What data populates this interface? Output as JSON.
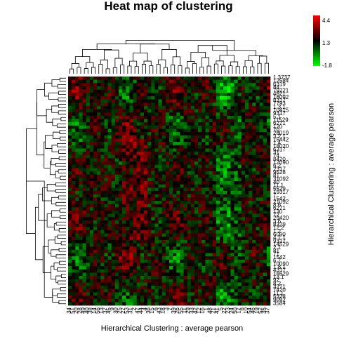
{
  "chart_data": {
    "type": "heatmap",
    "title": "Heat map of clustering",
    "xlabel": "Hierarchical Clustering : average pearson",
    "ylabel": "Hierarchical Clustering : average pearson",
    "color_scale": {
      "low": -1.8,
      "mid": 1.3,
      "high": 4.4,
      "low_color": "#00ff00",
      "mid_color": "#000000",
      "high_color": "#ff0000",
      "tick_labels": [
        "4.4",
        "1.3",
        "-1.8"
      ]
    },
    "n_rows": 70,
    "n_cols": 56,
    "column_labels": [
      "34",
      "51",
      "20",
      "28",
      "49",
      "40",
      "38",
      "14",
      "56",
      "13",
      "37",
      "45",
      "9",
      "30",
      "25",
      "27",
      "53",
      "31",
      "2",
      "47",
      "44",
      "4",
      "36",
      "15",
      "6",
      "43",
      "18",
      "3",
      "7",
      "39",
      "26",
      "55",
      "11",
      "29",
      "33",
      "42",
      "12",
      "16",
      "1",
      "48",
      "21",
      "41",
      "5",
      "22",
      "23",
      "24",
      "50",
      "17",
      "8",
      "10",
      "54",
      "46",
      "19",
      "52",
      "35",
      "37"
    ],
    "row_labels": [
      "1.3737",
      "12584",
      "6319",
      "84",
      "79221",
      "4821",
      "16092",
      "8317",
      "7793",
      "1.3.1",
      "10415",
      "9317",
      "5.1",
      "11529",
      "6271",
      "120",
      "70",
      "28019",
      "3.2.1",
      "15442",
      "1.4",
      "18020",
      "6317",
      "31",
      "74",
      "8420",
      "12090",
      "6.2",
      "2317",
      "9528",
      "81",
      "31092",
      "40",
      "11.1",
      "5529",
      "19317",
      "7",
      "1542",
      "21092",
      "8.6",
      "6271",
      "130",
      "72",
      "29420",
      "3.6",
      "8329",
      "12.2",
      "1.2",
      "6090",
      "4.1.1",
      "9317",
      "14529",
      "2.1",
      "81",
      "71",
      "1542",
      "6.7",
      "10090",
      "1.8.1",
      "4317",
      "16529",
      "13.1",
      "92",
      "8.2",
      "3271",
      "7420",
      "11.1",
      "5328",
      "9092",
      "3584"
    ],
    "values_note": "",
    "grid": false
  }
}
